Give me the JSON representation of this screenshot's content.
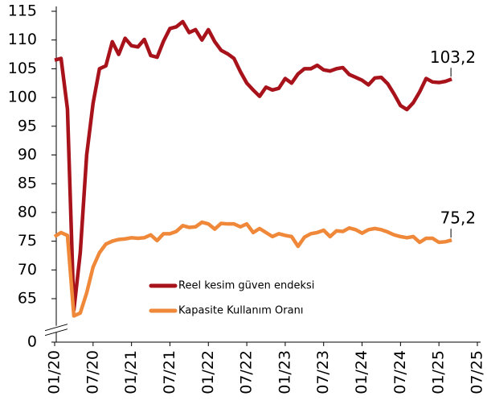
{
  "chart_data": {
    "type": "line",
    "categories": [
      "01/20",
      null,
      null,
      null,
      null,
      null,
      "07/20",
      null,
      null,
      null,
      null,
      null,
      "01/21",
      null,
      null,
      null,
      null,
      null,
      "07/21",
      null,
      null,
      null,
      null,
      null,
      "01/22",
      null,
      null,
      null,
      null,
      null,
      "07/22",
      null,
      null,
      null,
      null,
      null,
      "01/23",
      null,
      null,
      null,
      null,
      null,
      "07/23",
      null,
      null,
      null,
      null,
      null,
      "01/24",
      null,
      null,
      null,
      null,
      null,
      "07/24",
      null,
      null,
      null,
      null,
      null,
      "01/25",
      null,
      null,
      null,
      null,
      null,
      "07/25"
    ],
    "series": [
      {
        "name": "Reel kesim güven endeksi",
        "color": "#a8121a",
        "values": [
          106.5,
          106.8,
          98,
          63,
          73,
          90,
          99,
          105,
          105.5,
          109.7,
          107.5,
          110.3,
          109,
          108.8,
          110.1,
          107.3,
          107,
          109.8,
          112,
          112.3,
          113.2,
          111.3,
          111.8,
          110,
          111.8,
          109.7,
          108.2,
          107.6,
          106.8,
          104.5,
          102.5,
          101.3,
          100.2,
          101.8,
          101.3,
          101.6,
          103.3,
          102.5,
          104.1,
          105,
          105,
          105.6,
          104.8,
          104.6,
          105,
          105.2,
          104,
          103.5,
          103,
          102.2,
          103.4,
          103.5,
          102.4,
          100.6,
          98.6,
          97.9,
          99.1,
          101,
          103.3,
          102.7,
          102.6,
          102.8,
          103.2,
          null,
          null,
          null,
          null
        ],
        "value_labels": [
          null,
          null,
          null,
          null,
          null,
          null,
          null,
          null,
          null,
          null,
          null,
          null,
          null,
          null,
          null,
          null,
          null,
          null,
          null,
          null,
          null,
          null,
          null,
          null,
          null,
          null,
          null,
          null,
          null,
          null,
          null,
          null,
          null,
          null,
          null,
          null,
          null,
          null,
          null,
          null,
          null,
          null,
          null,
          null,
          null,
          null,
          null,
          null,
          null,
          null,
          null,
          null,
          null,
          null,
          null,
          null,
          null,
          null,
          null,
          null,
          null,
          null,
          "103,2",
          null,
          null,
          null,
          null
        ]
      },
      {
        "name": "Kapasite Kullanım Oranı",
        "color": "#f0883a",
        "values": [
          75.8,
          76.5,
          76,
          62,
          62.5,
          66,
          70.5,
          73,
          74.5,
          75,
          75.3,
          75.4,
          75.6,
          75.5,
          75.6,
          76.1,
          75.1,
          76.3,
          76.3,
          76.7,
          77.7,
          77.4,
          77.5,
          78.3,
          78,
          77.1,
          78.1,
          78,
          78,
          77.5,
          78,
          76.5,
          77.2,
          76.5,
          75.8,
          76.3,
          76,
          75.8,
          74.1,
          75.7,
          76.3,
          76.5,
          76.9,
          75.8,
          76.8,
          76.7,
          77.3,
          77,
          76.4,
          77,
          77.2,
          77,
          76.6,
          76.1,
          75.8,
          75.6,
          75.8,
          74.8,
          75.5,
          75.5,
          74.8,
          74.9,
          75.2,
          null,
          null,
          null,
          null
        ],
        "value_labels": [
          null,
          null,
          null,
          null,
          null,
          null,
          null,
          null,
          null,
          null,
          null,
          null,
          null,
          null,
          null,
          null,
          null,
          null,
          null,
          null,
          null,
          null,
          null,
          null,
          null,
          null,
          null,
          null,
          null,
          null,
          null,
          null,
          null,
          null,
          null,
          null,
          null,
          null,
          null,
          null,
          null,
          null,
          null,
          null,
          null,
          null,
          null,
          null,
          null,
          null,
          null,
          null,
          null,
          null,
          null,
          null,
          null,
          null,
          null,
          null,
          null,
          null,
          "75,2",
          null,
          null,
          null,
          null
        ]
      }
    ],
    "ylim": [
      0,
      115
    ],
    "yticks": [
      0,
      65,
      70,
      75,
      80,
      85,
      90,
      95,
      100,
      105,
      110,
      115
    ],
    "y_break": [
      0,
      60
    ],
    "grid": false
  }
}
